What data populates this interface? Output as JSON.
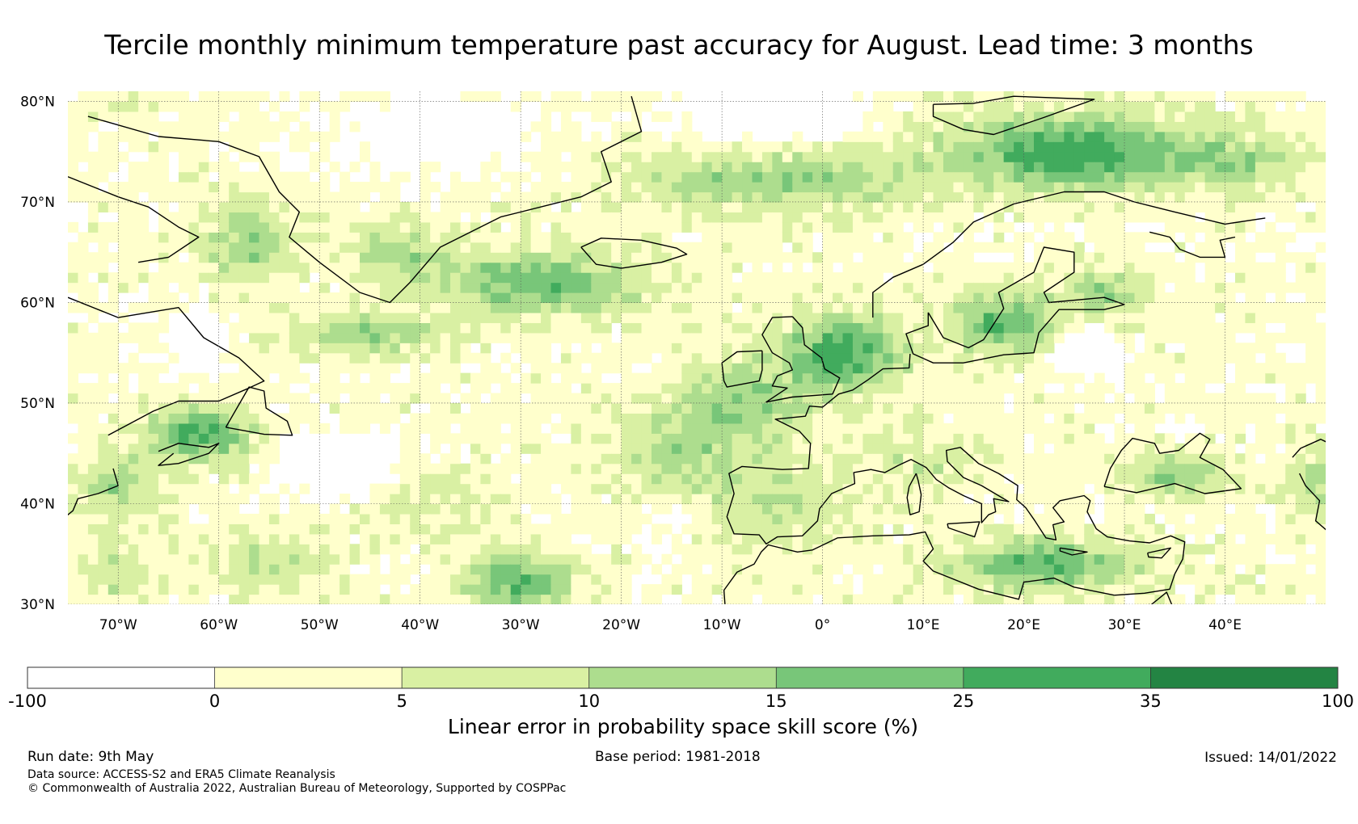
{
  "title": "Tercile monthly minimum temperature past accuracy for August. Lead time: 3 months",
  "map": {
    "lon_range": [
      -75,
      50
    ],
    "lat_range": [
      30,
      81
    ],
    "lat_ticks": [
      {
        "value": 80,
        "label": "80°N"
      },
      {
        "value": 70,
        "label": "70°N"
      },
      {
        "value": 60,
        "label": "60°N"
      },
      {
        "value": 50,
        "label": "50°N"
      },
      {
        "value": 40,
        "label": "40°N"
      },
      {
        "value": 30,
        "label": "30°N"
      }
    ],
    "lon_ticks": [
      {
        "value": -70,
        "label": "70°W"
      },
      {
        "value": -60,
        "label": "60°W"
      },
      {
        "value": -50,
        "label": "50°W"
      },
      {
        "value": -40,
        "label": "40°W"
      },
      {
        "value": -30,
        "label": "30°W"
      },
      {
        "value": -20,
        "label": "20°W"
      },
      {
        "value": -10,
        "label": "10°W"
      },
      {
        "value": 0,
        "label": "0°"
      },
      {
        "value": 10,
        "label": "10°E"
      },
      {
        "value": 20,
        "label": "20°E"
      },
      {
        "value": 30,
        "label": "30°E"
      },
      {
        "value": 40,
        "label": "40°E"
      }
    ],
    "gridlines": true,
    "skill_field_colors": [
      "#ffffff",
      "#ffffcc",
      "#d9f0a3",
      "#addd8e",
      "#78c679",
      "#41ab5d",
      "#238443"
    ]
  },
  "colorbar": {
    "title": "Linear error in probability space skill score (%)",
    "boundaries": [
      "-100",
      "0",
      "5",
      "10",
      "15",
      "25",
      "35",
      "100"
    ],
    "colors": [
      "#ffffff",
      "#ffffcc",
      "#d9f0a3",
      "#addd8e",
      "#78c679",
      "#41ab5d",
      "#238443"
    ]
  },
  "footer": {
    "run_date": "Run date: 9th May",
    "base_period": "Base period: 1981-2018",
    "issued": "Issued: 14/01/2022",
    "data_source": "Data source: ACCESS-S2 and ERA5 Climate Reanalysis",
    "copyright": "© Commonwealth of Australia 2022, Australian Bureau of Meteorology, Supported by COSPPac"
  }
}
